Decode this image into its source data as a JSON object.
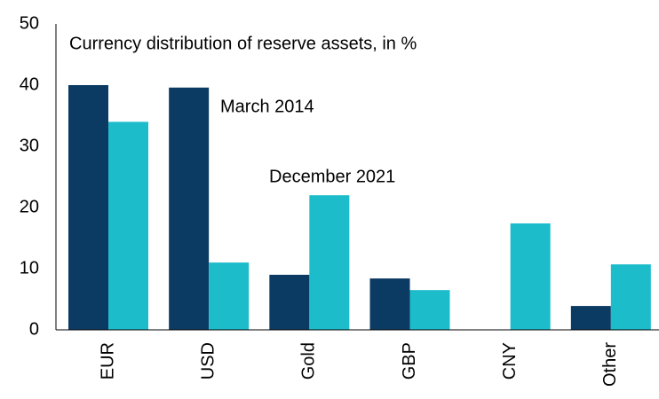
{
  "chart_data": {
    "type": "bar",
    "title": "Currency distribution of reserve assets, in %",
    "categories": [
      "EUR",
      "USD",
      "Gold",
      "GBP",
      "CNY",
      "Other"
    ],
    "series": [
      {
        "name": "March 2014",
        "color": "#0b3a63",
        "values": [
          40,
          39.6,
          9,
          8.4,
          0,
          3.9
        ]
      },
      {
        "name": "December 2021",
        "color": "#1cbccb",
        "values": [
          34,
          11,
          22,
          6.5,
          17.4,
          10.7
        ]
      }
    ],
    "ylim": [
      0,
      50
    ],
    "yticks": [
      0,
      10,
      20,
      30,
      40,
      50
    ],
    "grid": false
  }
}
